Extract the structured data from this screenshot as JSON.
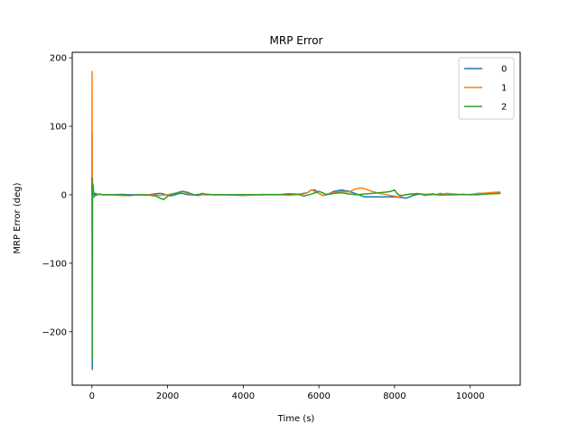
{
  "chart_data": {
    "type": "line",
    "title": "MRP Error",
    "xlabel": "Time (s)",
    "ylabel": "MRP Error (deg)",
    "xlim": [
      -520,
      11320
    ],
    "ylim": [
      -278,
      208
    ],
    "x_ticks": [
      0,
      2000,
      4000,
      6000,
      8000,
      10000
    ],
    "y_ticks": [
      -200,
      -100,
      0,
      100,
      200
    ],
    "x_tick_labels": [
      "0",
      "2000",
      "4000",
      "6000",
      "8000",
      "10000"
    ],
    "y_tick_labels": [
      "−200",
      "−100",
      "0",
      "100",
      "200"
    ],
    "grid": false,
    "legend": {
      "placement": "top-right"
    },
    "series": [
      {
        "name": "0",
        "color": "#1f77b4",
        "x": [
          0,
          5,
          10,
          15,
          20,
          30,
          40,
          60,
          80,
          100,
          150,
          200,
          300,
          500,
          800,
          1000,
          1200,
          1500,
          1700,
          1800,
          1900,
          2000,
          2100,
          2200,
          2300,
          2400,
          2500,
          2700,
          2800,
          3000,
          3200,
          3500,
          4000,
          4500,
          5000,
          5200,
          5500,
          5700,
          5800,
          5900,
          6000,
          6100,
          6200,
          6400,
          6600,
          6800,
          7000,
          7200,
          7400,
          7600,
          7800,
          8000,
          8200,
          8300,
          8400,
          8500,
          8600,
          8700,
          8800,
          8900,
          9000,
          9100,
          9200,
          9400,
          9600,
          9800,
          10000,
          10200,
          10400,
          10600,
          10800
        ],
        "values": [
          0,
          90,
          -255,
          20,
          -5,
          15,
          5,
          -3,
          2,
          -1,
          1,
          0.5,
          0,
          0,
          0.5,
          0,
          0,
          0,
          1.5,
          2,
          1,
          -1,
          -1.5,
          0,
          2,
          2,
          0.5,
          -0.5,
          0.5,
          0,
          0,
          0,
          0,
          0,
          0,
          0.5,
          1,
          3,
          7,
          7,
          2,
          -1,
          0,
          5,
          7,
          5,
          1,
          -3,
          -3,
          -3,
          -3,
          -3,
          -4,
          -5,
          -3,
          -1,
          0.5,
          1,
          -1,
          0,
          1.5,
          0,
          2,
          0,
          0,
          0.5,
          0,
          2,
          2,
          2.5,
          2.5
        ]
      },
      {
        "name": "1",
        "color": "#ff7f0e",
        "x": [
          0,
          5,
          10,
          15,
          20,
          30,
          40,
          60,
          80,
          100,
          150,
          200,
          300,
          500,
          800,
          1000,
          1200,
          1500,
          1700,
          1800,
          2000,
          2200,
          2300,
          2400,
          2500,
          2600,
          2800,
          3000,
          3200,
          3500,
          4000,
          4500,
          5000,
          5200,
          5400,
          5600,
          5700,
          5800,
          5900,
          6000,
          6100,
          6200,
          6400,
          6600,
          6800,
          6900,
          7000,
          7100,
          7200,
          7400,
          7600,
          7800,
          8000,
          8100,
          8200,
          8300,
          8400,
          8500,
          8600,
          8800,
          9000,
          9200,
          9400,
          9600,
          9800,
          10000,
          10200,
          10400,
          10600,
          10800
        ],
        "values": [
          0,
          180,
          -15,
          25,
          3,
          8,
          -2,
          1,
          0,
          0.5,
          1,
          0.5,
          0,
          0,
          -1,
          -1,
          0,
          0,
          -0.5,
          -1,
          0,
          2,
          4,
          5,
          3,
          1,
          -1,
          0.5,
          0,
          0,
          -1,
          0.5,
          0,
          -1,
          0,
          1,
          3,
          7,
          5,
          2,
          -1,
          1,
          3,
          5,
          4,
          7,
          9,
          10,
          9,
          5,
          2,
          0,
          -2,
          -3,
          -1,
          0.5,
          0.5,
          1,
          2,
          -1,
          0,
          1,
          2,
          1,
          0,
          0.5,
          1.5,
          2.5,
          3.5,
          4
        ]
      },
      {
        "name": "2",
        "color": "#2ca02c",
        "x": [
          0,
          5,
          10,
          15,
          20,
          30,
          40,
          60,
          80,
          100,
          150,
          200,
          300,
          500,
          800,
          1000,
          1200,
          1500,
          1700,
          1800,
          1900,
          2000,
          2100,
          2200,
          2300,
          2400,
          2500,
          2600,
          2700,
          2800,
          2900,
          3000,
          3200,
          3500,
          4000,
          4500,
          5000,
          5200,
          5400,
          5500,
          5600,
          5800,
          6000,
          6100,
          6200,
          6400,
          6600,
          6800,
          7000,
          7200,
          7400,
          7600,
          7800,
          7900,
          8000,
          8050,
          8100,
          8200,
          8300,
          8400,
          8600,
          8800,
          9000,
          9200,
          9400,
          9600,
          9800,
          10000,
          10200,
          10400,
          10600,
          10800
        ],
        "values": [
          0,
          25,
          -240,
          10,
          0,
          12,
          3,
          1,
          -1,
          2,
          0,
          1,
          0,
          0,
          0,
          -1,
          0,
          -0.5,
          -2,
          -5,
          -7,
          -2,
          1,
          2,
          3,
          5,
          4,
          2,
          0,
          -1,
          2,
          1,
          0,
          0,
          0,
          0,
          0.5,
          1.5,
          1,
          0,
          -2,
          1,
          5,
          3,
          0,
          2,
          3,
          1,
          0,
          1,
          2,
          3,
          4,
          5,
          7,
          3,
          0,
          -1,
          0,
          1,
          1.5,
          0.5,
          1,
          -0.5,
          0,
          0,
          0.5,
          0,
          0,
          1,
          1.5,
          2
        ]
      }
    ]
  }
}
